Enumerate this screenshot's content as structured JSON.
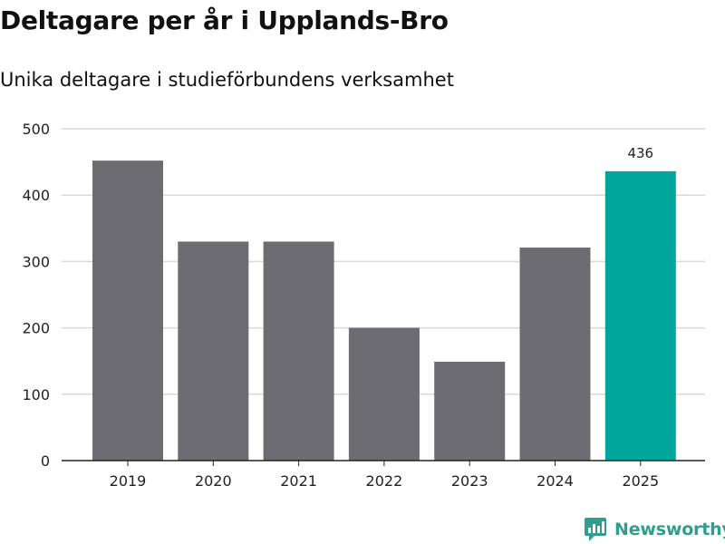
{
  "title": "Deltagare per år i Upplands-Bro",
  "subtitle": "Unika deltagare i studieförbundens verksamhet",
  "brand": {
    "name": "Newsworthy",
    "logo_icon": "newsworthy-logo-icon",
    "color": "#2e9e8f"
  },
  "chart_data": {
    "type": "bar",
    "title": "Deltagare per år i Upplands-Bro",
    "subtitle": "Unika deltagare i studieförbundens verksamhet",
    "xlabel": "",
    "ylabel": "",
    "categories": [
      "2019",
      "2020",
      "2021",
      "2022",
      "2023",
      "2024",
      "2025"
    ],
    "values": [
      452,
      330,
      330,
      200,
      149,
      321,
      436
    ],
    "data_labels": [
      {
        "category": "2025",
        "text": "436"
      }
    ],
    "ylim": [
      0,
      500
    ],
    "yticks": [
      0,
      100,
      200,
      300,
      400,
      500
    ],
    "grid": true,
    "colors": {
      "default": "#6d6c72",
      "highlight": "#00a69c",
      "gridline": "#d9d9d9",
      "axis": "#222222",
      "text": "#222222"
    },
    "highlight_category": "2025"
  }
}
